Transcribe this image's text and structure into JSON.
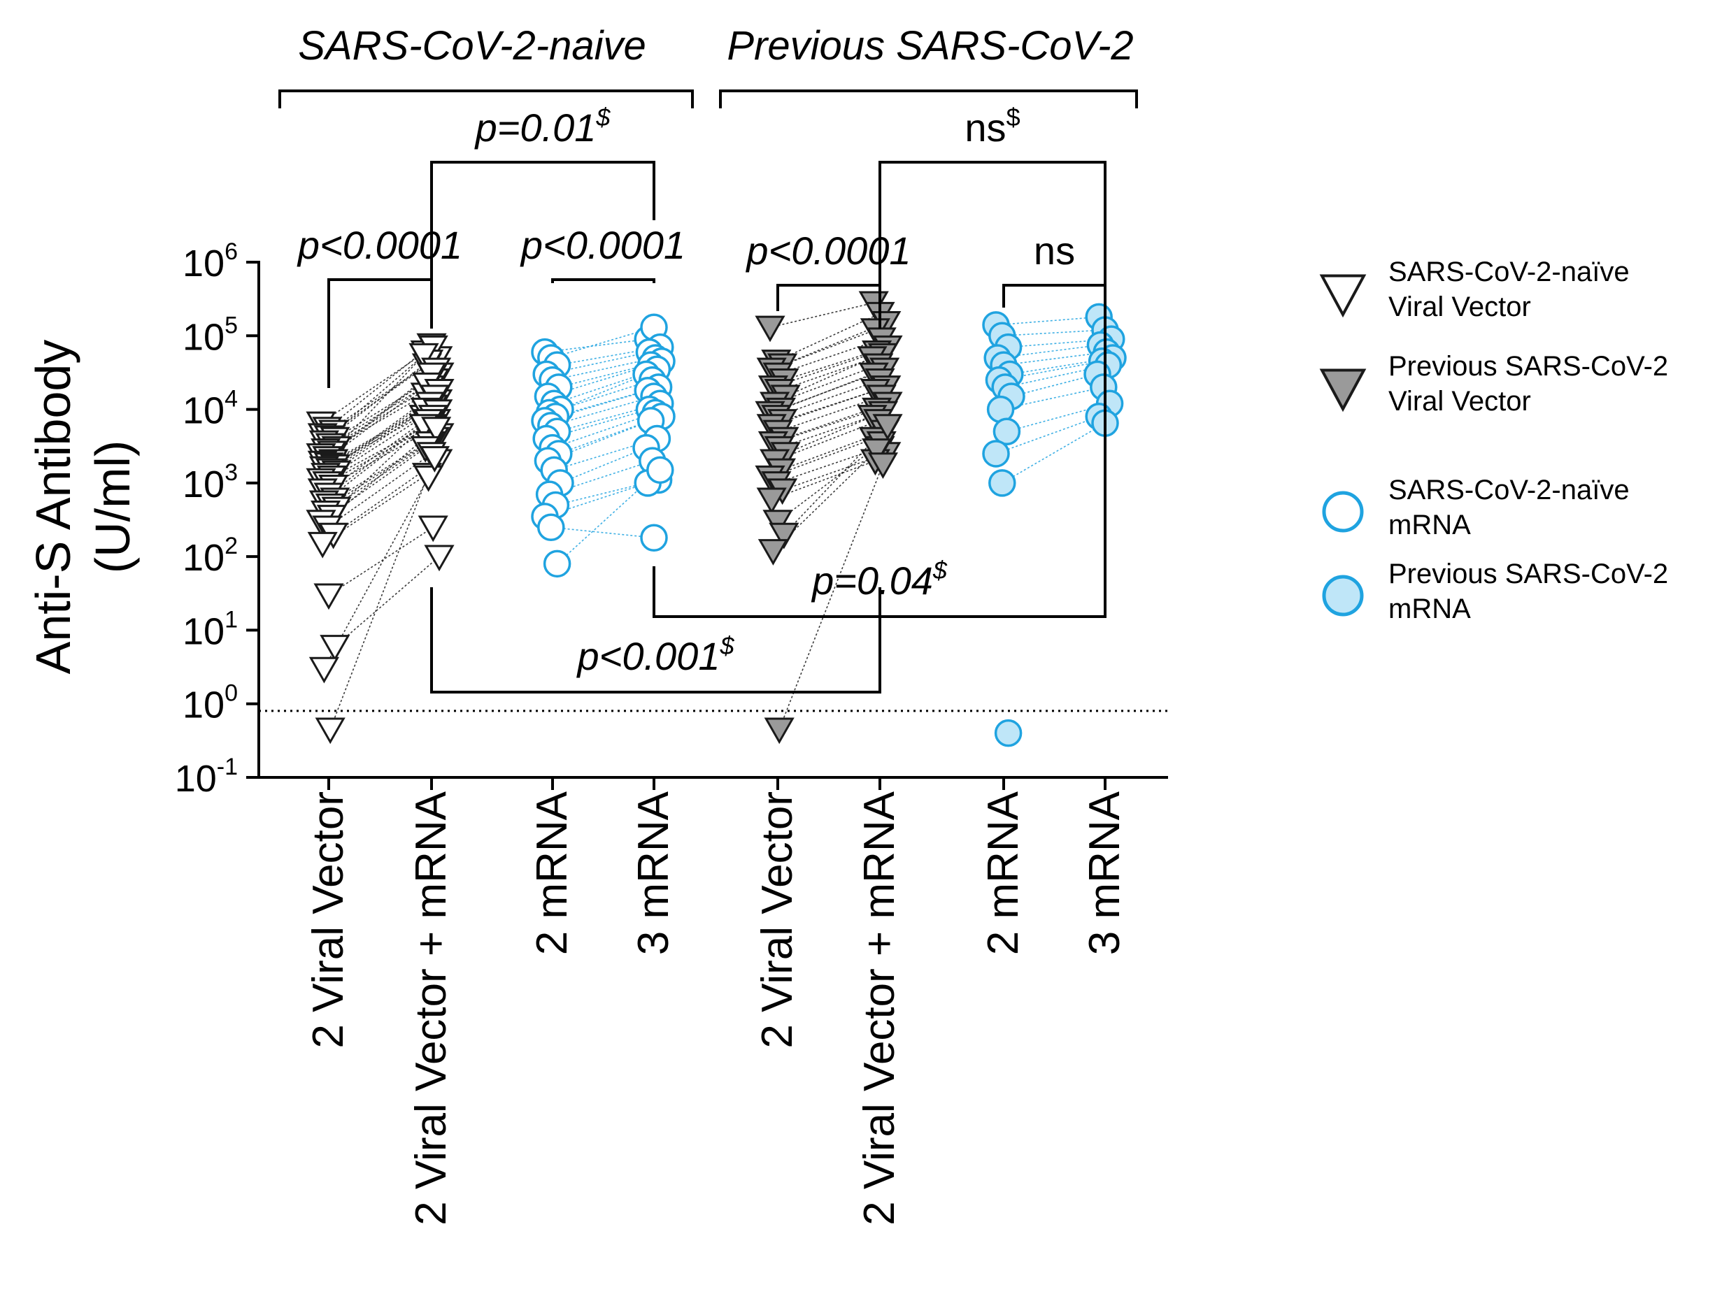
{
  "chart_data": {
    "type": "scatter",
    "subtype": "paired before-after, log scale",
    "ylabel_line1": "Anti-S Antibody",
    "ylabel_line2": "(U/ml)",
    "yscale": "log10",
    "ylim": [
      0.1,
      1000000
    ],
    "y_ticks": [
      {
        "base": "10",
        "exp": "6",
        "value": 1000000
      },
      {
        "base": "10",
        "exp": "5",
        "value": 100000
      },
      {
        "base": "10",
        "exp": "4",
        "value": 10000
      },
      {
        "base": "10",
        "exp": "3",
        "value": 1000
      },
      {
        "base": "10",
        "exp": "2",
        "value": 100
      },
      {
        "base": "10",
        "exp": "1",
        "value": 10
      },
      {
        "base": "10",
        "exp": "0",
        "value": 1
      },
      {
        "base": "10",
        "exp": "-1",
        "value": 0.1
      }
    ],
    "detection_limit": 0.8,
    "groups": [
      {
        "title": "SARS-CoV-2-naive",
        "columns": [
          0,
          3
        ]
      },
      {
        "title": "Previous SARS-CoV-2",
        "columns": [
          4,
          7
        ]
      }
    ],
    "categories": [
      "2 Viral Vector",
      "2 Viral Vector + mRNA",
      "2 mRNA",
      "3 mRNA",
      "2 Viral Vector",
      "2 Viral Vector + mRNA",
      "2 mRNA",
      "3 mRNA"
    ],
    "legend": [
      {
        "line1": "SARS-CoV-2-naïve",
        "line2": "Viral Vector",
        "marker": "triangle",
        "fill": "#ffffff",
        "stroke": "#1a1a1a"
      },
      {
        "line1": "Previous SARS-CoV-2",
        "line2": "Viral Vector",
        "marker": "triangle",
        "fill": "#9a9a9a",
        "stroke": "#1a1a1a"
      },
      {
        "line1": "SARS-CoV-2-naïve",
        "line2": "mRNA",
        "marker": "circle",
        "fill": "#ffffff",
        "stroke": "#1fa3e0"
      },
      {
        "line1": "Previous SARS-CoV-2",
        "line2": "mRNA",
        "marker": "circle",
        "fill": "#bfe6f8",
        "stroke": "#1fa3e0"
      }
    ],
    "series": [
      {
        "name": "SARS-CoV-2-naïve Viral Vector",
        "marker": "triangle",
        "fill": "#ffffff",
        "stroke": "#1a1a1a",
        "line_color": "#1a1a1a",
        "columns": [
          0,
          1
        ],
        "pairs": [
          [
            6500,
            60000
          ],
          [
            5500,
            75000
          ],
          [
            5000,
            50000
          ],
          [
            4500,
            40000
          ],
          [
            4200,
            70000
          ],
          [
            4000,
            30000
          ],
          [
            3600,
            45000
          ],
          [
            3300,
            25000
          ],
          [
            3000,
            55000
          ],
          [
            2800,
            20000
          ],
          [
            2600,
            35000
          ],
          [
            2400,
            16000
          ],
          [
            2200,
            30000
          ],
          [
            2000,
            13000
          ],
          [
            1900,
            22000
          ],
          [
            1800,
            11000
          ],
          [
            1700,
            18000
          ],
          [
            1600,
            9000
          ],
          [
            1500,
            15000
          ],
          [
            1400,
            8000
          ],
          [
            1300,
            12000
          ],
          [
            1200,
            7000
          ],
          [
            1100,
            10000
          ],
          [
            1000,
            6000
          ],
          [
            900,
            9500
          ],
          [
            800,
            5000
          ],
          [
            700,
            8000
          ],
          [
            600,
            4500
          ],
          [
            550,
            7000
          ],
          [
            500,
            4000
          ],
          [
            450,
            6000
          ],
          [
            400,
            3500
          ],
          [
            350,
            5500
          ],
          [
            300,
            3000
          ],
          [
            250,
            2500
          ],
          [
            200,
            2000
          ],
          [
            150,
            1300
          ],
          [
            30,
            250
          ],
          [
            6,
            100
          ],
          [
            3,
            1200
          ],
          [
            0.45,
            2200
          ]
        ]
      },
      {
        "name": "SARS-CoV-2-naïve mRNA",
        "marker": "circle",
        "fill": "#ffffff",
        "stroke": "#1fa3e0",
        "line_color": "#1fa3e0",
        "columns": [
          2,
          3
        ],
        "pairs": [
          [
            60000,
            90000
          ],
          [
            50000,
            130000
          ],
          [
            40000,
            70000
          ],
          [
            30000,
            60000
          ],
          [
            25000,
            50000
          ],
          [
            20000,
            45000
          ],
          [
            15000,
            40000
          ],
          [
            12000,
            35000
          ],
          [
            10000,
            30000
          ],
          [
            9000,
            25000
          ],
          [
            8000,
            20000
          ],
          [
            7000,
            18000
          ],
          [
            6000,
            15000
          ],
          [
            5000,
            12000
          ],
          [
            4000,
            10000
          ],
          [
            3000,
            9000
          ],
          [
            2500,
            8000
          ],
          [
            2000,
            7000
          ],
          [
            1500,
            4000
          ],
          [
            1000,
            3000
          ],
          [
            700,
            2000
          ],
          [
            500,
            1100
          ],
          [
            350,
            1000
          ],
          [
            250,
            180
          ],
          [
            80,
            1500
          ]
        ]
      },
      {
        "name": "Previous SARS-CoV-2 Viral Vector",
        "marker": "triangle",
        "fill": "#9a9a9a",
        "stroke": "#1a1a1a",
        "line_color": "#1a1a1a",
        "columns": [
          4,
          5
        ],
        "pairs": [
          [
            130000,
            280000
          ],
          [
            45000,
            200000
          ],
          [
            40000,
            150000
          ],
          [
            35000,
            120000
          ],
          [
            30000,
            90000
          ],
          [
            25000,
            70000
          ],
          [
            20000,
            60000
          ],
          [
            18000,
            55000
          ],
          [
            15000,
            50000
          ],
          [
            12000,
            40000
          ],
          [
            10000,
            35000
          ],
          [
            9000,
            30000
          ],
          [
            8000,
            25000
          ],
          [
            7000,
            20000
          ],
          [
            6000,
            18000
          ],
          [
            5000,
            15000
          ],
          [
            4000,
            12000
          ],
          [
            3500,
            10000
          ],
          [
            3000,
            9000
          ],
          [
            2500,
            8000
          ],
          [
            2000,
            7000
          ],
          [
            1500,
            5000
          ],
          [
            1200,
            4000
          ],
          [
            1000,
            3000
          ],
          [
            800,
            2500
          ],
          [
            600,
            2000
          ],
          [
            300,
            3500
          ],
          [
            200,
            6000
          ],
          [
            120,
            2800
          ],
          [
            0.45,
            1800
          ]
        ]
      },
      {
        "name": "Previous SARS-CoV-2 mRNA",
        "marker": "circle",
        "fill": "#bfe6f8",
        "stroke": "#1fa3e0",
        "line_color": "#1fa3e0",
        "columns": [
          6,
          7
        ],
        "pairs": [
          [
            140000,
            180000
          ],
          [
            100000,
            120000
          ],
          [
            70000,
            90000
          ],
          [
            50000,
            75000
          ],
          [
            40000,
            60000
          ],
          [
            30000,
            50000
          ],
          [
            25000,
            45000
          ],
          [
            20000,
            40000
          ],
          [
            15000,
            30000
          ],
          [
            10000,
            20000
          ],
          [
            5000,
            12000
          ],
          [
            2500,
            8000
          ],
          [
            1000,
            6500
          ],
          [
            0.4,
            null
          ]
        ]
      }
    ],
    "annotations": [
      {
        "label": "p<0.0001",
        "from": 0,
        "to": 1,
        "y_value": 200000,
        "position": "above"
      },
      {
        "label": "p<0.0001",
        "from": 2,
        "to": 3,
        "y_value": 200000,
        "position": "above"
      },
      {
        "label": "p<0.0001",
        "from": 4,
        "to": 5,
        "y_value": 300000,
        "position": "above"
      },
      {
        "label": "ns",
        "from": 6,
        "to": 7,
        "y_value": 300000,
        "position": "above"
      },
      {
        "label": "p=0.01",
        "suffix": "$",
        "from": 1,
        "to": 3,
        "y_value": 30000000,
        "position": "above"
      },
      {
        "label": "ns",
        "suffix": "$",
        "from": 5,
        "to": 7,
        "y_value": 30000000,
        "position": "above"
      },
      {
        "label": "p<0.001",
        "suffix": "$",
        "from": 1,
        "to": 5,
        "y_value": 1.5,
        "position": "below"
      },
      {
        "label": "p=0.04",
        "suffix": "$",
        "from": 3,
        "to": 7,
        "y_value": 6,
        "position": "below"
      }
    ]
  }
}
